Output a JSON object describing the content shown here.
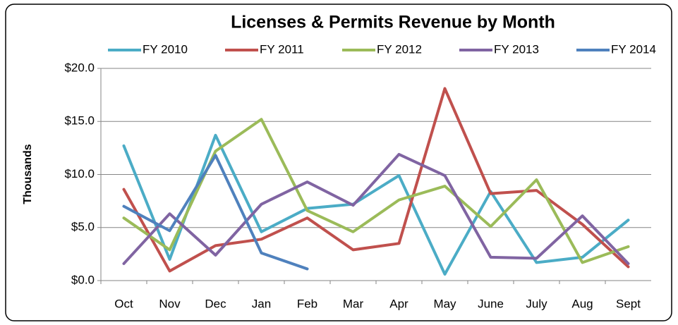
{
  "chart_data": {
    "type": "line",
    "title": "Licenses & Permits Revenue by Month",
    "y_label": "Thousands",
    "categories": [
      "Oct",
      "Nov",
      "Dec",
      "Jan",
      "Feb",
      "Mar",
      "Apr",
      "May",
      "June",
      "July",
      "Aug",
      "Sept"
    ],
    "series": [
      {
        "name": "FY 2010",
        "color": "#4bacc6",
        "values": [
          12.7,
          2.0,
          13.7,
          4.6,
          6.8,
          7.2,
          9.9,
          0.6,
          8.4,
          1.7,
          2.2,
          5.7
        ]
      },
      {
        "name": "FY 2011",
        "color": "#c0504d",
        "values": [
          8.6,
          0.9,
          3.3,
          3.9,
          5.9,
          2.9,
          3.5,
          18.1,
          8.2,
          8.5,
          5.3,
          1.3
        ]
      },
      {
        "name": "FY 2012",
        "color": "#9bbb59",
        "values": [
          5.9,
          2.9,
          12.2,
          15.2,
          6.6,
          4.6,
          7.6,
          8.9,
          5.1,
          9.5,
          1.7,
          3.2
        ]
      },
      {
        "name": "FY 2013",
        "color": "#8064a2",
        "values": [
          1.6,
          6.3,
          2.4,
          7.2,
          9.3,
          7.1,
          11.9,
          9.9,
          2.2,
          2.1,
          6.1,
          1.6
        ]
      },
      {
        "name": "FY 2014",
        "color": "#4f81bd",
        "values": [
          7.0,
          4.7,
          11.8,
          2.6,
          1.1,
          null,
          null,
          null,
          null,
          null,
          null,
          null
        ]
      }
    ],
    "ylim": [
      0,
      20
    ],
    "yticks": [
      {
        "value": 0,
        "label": "$0.0"
      },
      {
        "value": 5,
        "label": "$5.0"
      },
      {
        "value": 10,
        "label": "$10.0"
      },
      {
        "value": 15,
        "label": "$15.0"
      },
      {
        "value": 20,
        "label": "$20.0"
      }
    ],
    "grid": true
  }
}
